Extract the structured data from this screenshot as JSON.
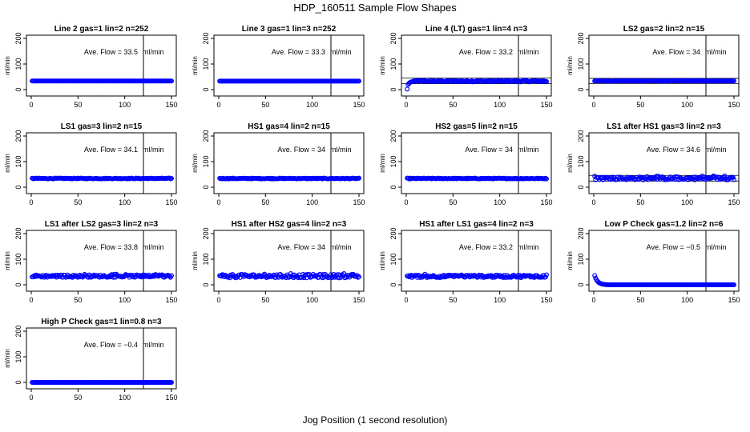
{
  "title": "HDP_160511  Sample Flow Shapes",
  "xlabel": "Jog Position (1 second resolution)",
  "ylabel": "ml/min",
  "ave_prefix": "Ave. Flow =",
  "ave_unit": "ml/min",
  "colors": {
    "points": "#0000ff",
    "axis": "#000000"
  },
  "chart_data": [
    {
      "type": "scatter",
      "title": "Line 2 gas=1 lin=2 n=252",
      "ave": "33.5",
      "shape": "flat",
      "noise": 0,
      "xlim": [
        0,
        150
      ],
      "ylim": [
        0,
        200
      ],
      "xticks": [
        0,
        50,
        100,
        150
      ],
      "yticks": [
        0,
        100,
        200
      ],
      "vline_x": 120,
      "hlines": []
    },
    {
      "type": "scatter",
      "title": "Line 3 gas=1 lin=3 n=252",
      "ave": "33.3",
      "shape": "flat",
      "noise": 0,
      "xlim": [
        0,
        150
      ],
      "ylim": [
        0,
        200
      ],
      "xticks": [
        0,
        50,
        100,
        150
      ],
      "yticks": [
        0,
        100,
        200
      ],
      "vline_x": 120,
      "hlines": []
    },
    {
      "type": "scatter",
      "title": "Line 4 (LT) gas=1 lin=4 n=3",
      "ave": "33.2",
      "shape": "ramp",
      "noise": 3,
      "xlim": [
        0,
        150
      ],
      "ylim": [
        0,
        200
      ],
      "xticks": [
        0,
        50,
        100,
        150
      ],
      "yticks": [
        0,
        100,
        200
      ],
      "vline_x": 120,
      "hlines": [
        23,
        45
      ]
    },
    {
      "type": "scatter",
      "title": "LS2 gas=2 lin=2 n=15",
      "ave": "34",
      "shape": "flat",
      "noise": 1.5,
      "xlim": [
        0,
        150
      ],
      "ylim": [
        0,
        200
      ],
      "xticks": [
        0,
        50,
        100,
        150
      ],
      "yticks": [
        0,
        100,
        200
      ],
      "vline_x": 120,
      "hlines": [
        24,
        44
      ]
    },
    {
      "type": "scatter",
      "title": "LS1 gas=3 lin=2 n=15",
      "ave": "34.1",
      "shape": "flat",
      "noise": 1.5,
      "xlim": [
        0,
        150
      ],
      "ylim": [
        0,
        200
      ],
      "xticks": [
        0,
        50,
        100,
        150
      ],
      "yticks": [
        0,
        100,
        200
      ],
      "vline_x": 120,
      "hlines": []
    },
    {
      "type": "scatter",
      "title": "HS1 gas=4 lin=2 n=15",
      "ave": "34",
      "shape": "flat",
      "noise": 1.5,
      "xlim": [
        0,
        150
      ],
      "ylim": [
        0,
        200
      ],
      "xticks": [
        0,
        50,
        100,
        150
      ],
      "yticks": [
        0,
        100,
        200
      ],
      "vline_x": 120,
      "hlines": []
    },
    {
      "type": "scatter",
      "title": "HS2 gas=5 lin=2 n=15",
      "ave": "34",
      "shape": "flat",
      "noise": 1.5,
      "xlim": [
        0,
        150
      ],
      "ylim": [
        0,
        200
      ],
      "xticks": [
        0,
        50,
        100,
        150
      ],
      "yticks": [
        0,
        100,
        200
      ],
      "vline_x": 120,
      "hlines": []
    },
    {
      "type": "scatter",
      "title": "LS1 after HS1 gas=3 lin=2 n=3",
      "ave": "34.6",
      "shape": "flat",
      "noise": 6,
      "xlim": [
        0,
        150
      ],
      "ylim": [
        0,
        200
      ],
      "xticks": [
        0,
        50,
        100,
        150
      ],
      "yticks": [
        0,
        100,
        200
      ],
      "vline_x": 120,
      "hlines": [
        24,
        46
      ]
    },
    {
      "type": "scatter",
      "title": "LS1 after LS2 gas=3 lin=2 n=3",
      "ave": "33.8",
      "shape": "flat",
      "noise": 5,
      "xlim": [
        0,
        150
      ],
      "ylim": [
        0,
        200
      ],
      "xticks": [
        0,
        50,
        100,
        150
      ],
      "yticks": [
        0,
        100,
        200
      ],
      "vline_x": 120,
      "hlines": []
    },
    {
      "type": "scatter",
      "title": "HS1 after HS2 gas=4 lin=2 n=3",
      "ave": "34",
      "shape": "flat",
      "noise": 7,
      "xlim": [
        0,
        150
      ],
      "ylim": [
        0,
        200
      ],
      "xticks": [
        0,
        50,
        100,
        150
      ],
      "yticks": [
        0,
        100,
        200
      ],
      "vline_x": 120,
      "hlines": []
    },
    {
      "type": "scatter",
      "title": "HS1 after LS1 gas=4 lin=2 n=3",
      "ave": "33.2",
      "shape": "flat",
      "noise": 5,
      "xlim": [
        0,
        150
      ],
      "ylim": [
        0,
        200
      ],
      "xticks": [
        0,
        50,
        100,
        150
      ],
      "yticks": [
        0,
        100,
        200
      ],
      "vline_x": 120,
      "hlines": []
    },
    {
      "type": "scatter",
      "title": "Low P Check gas=1.2 lin=2 n=6",
      "ave": "−0.5",
      "shape": "decay",
      "noise": 0,
      "xlim": [
        0,
        150
      ],
      "ylim": [
        0,
        200
      ],
      "xticks": [
        0,
        50,
        100,
        150
      ],
      "yticks": [
        0,
        100,
        200
      ],
      "vline_x": 120,
      "hlines": []
    },
    {
      "type": "scatter",
      "title": "High P Check gas=1 lin=0.8 n=3",
      "ave": "−0.4",
      "shape": "zero",
      "noise": 0,
      "xlim": [
        0,
        150
      ],
      "ylim": [
        0,
        200
      ],
      "xticks": [
        0,
        50,
        100,
        150
      ],
      "yticks": [
        0,
        100,
        200
      ],
      "vline_x": 120,
      "hlines": []
    }
  ]
}
